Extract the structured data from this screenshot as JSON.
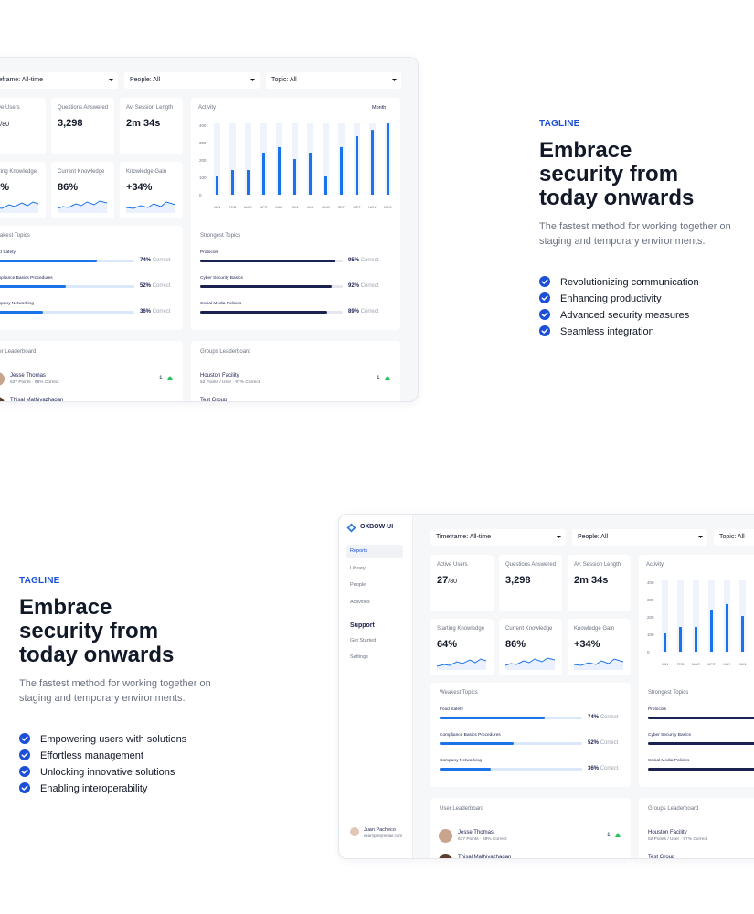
{
  "sections": [
    {
      "tagline": "TAGLINE",
      "heading": "Embrace security from today onwards",
      "subtitle": "The fastest method for working together on staging and temporary environments.",
      "features": [
        "Revolutionizing communication",
        "Enhancing productivity",
        "Advanced security measures",
        "Seamless integration"
      ]
    },
    {
      "tagline": "TAGLINE",
      "heading": "Embrace security from today onwards",
      "subtitle": "The fastest method for working together on staging and temporary environments.",
      "features": [
        "Empowering users with solutions",
        "Effortless management",
        "Unlocking innovative solutions",
        "Enabling interoperability"
      ]
    }
  ],
  "dashboard": {
    "brand": "OXBOW UI",
    "nav": [
      "Reports",
      "Library",
      "People",
      "Activities"
    ],
    "support_heading": "Support",
    "support_nav": [
      "Get Started",
      "Settings"
    ],
    "user": {
      "name": "Juan Pacheco",
      "email": "example@email.com"
    },
    "filters": [
      "Timeframe: All-time",
      "People: All",
      "Topic: All"
    ],
    "stats": [
      {
        "label": "Active Users",
        "value": "27",
        "suffix": "/80"
      },
      {
        "label": "Questions Answered",
        "value": "3,298"
      },
      {
        "label": "Av. Session Length",
        "value": "2m 34s"
      },
      {
        "label": "Starting Knowledge",
        "value": "64%"
      },
      {
        "label": "Current Knowledge",
        "value": "86%"
      },
      {
        "label": "Knowledge Gain",
        "value": "+34%"
      }
    ],
    "activity": {
      "type": "bar",
      "title": "Activity",
      "period": "Month",
      "categories": [
        "JAN",
        "FEB",
        "MAR",
        "APR",
        "MAY",
        "JUN",
        "JUL",
        "AUG",
        "SEP",
        "OCT",
        "NOV",
        "DEC"
      ],
      "values": [
        105,
        142,
        142,
        242,
        274,
        205,
        242,
        105,
        274,
        337,
        373,
        410
      ],
      "color": "#1a73e8",
      "ylim": [
        0,
        400
      ],
      "yticks": [
        0,
        100,
        200,
        300,
        400
      ]
    },
    "weakest": {
      "title": "Weakest Topics",
      "items": [
        {
          "name": "Food Safety",
          "value": 74,
          "value_label": "74%"
        },
        {
          "name": "Compliance Basics Procedures",
          "value": 52,
          "value_label": "52%"
        },
        {
          "name": "Company Networking",
          "value": 36,
          "value_label": "36%"
        }
      ]
    },
    "strongest": {
      "title": "Strongest Topics",
      "items": [
        {
          "name": "Protocols",
          "value": 95,
          "value_label": "95%"
        },
        {
          "name": "Cyber Security Basics",
          "value": 92,
          "value_label": "92%"
        },
        {
          "name": "Social Media Policies",
          "value": 89,
          "value_label": "89%"
        }
      ]
    },
    "correct_label": "Correct",
    "user_leaderboard": {
      "title": "User Leaderboard",
      "rows": [
        {
          "name": "Jesse Thomas",
          "detail": "637 Points · 98% Correct",
          "rank": "1"
        },
        {
          "name": "Thisal Mathiyazhagan"
        }
      ]
    },
    "groups_leaderboard": {
      "title": "Groups Leaderboard",
      "rows": [
        {
          "name": "Houston Facility",
          "detail": "52 Points / User · 97% Correct",
          "rank": "1"
        },
        {
          "name": "Test Group"
        }
      ]
    }
  }
}
